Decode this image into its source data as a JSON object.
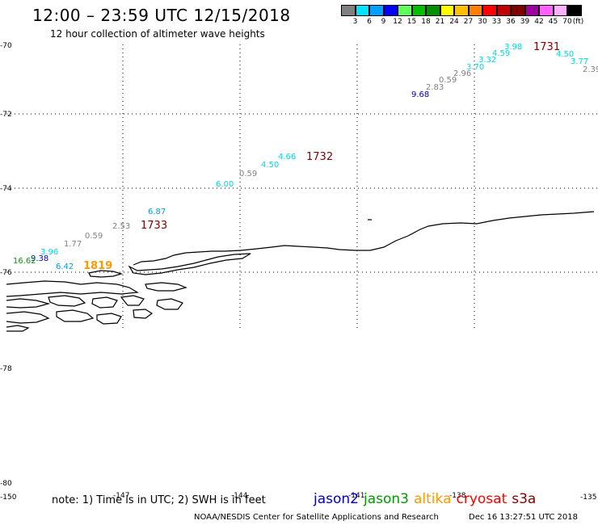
{
  "header": {
    "title": "12:00 – 23:59 UTC 12/15/2018",
    "subtitle": "12 hour collection of altimeter wave heights"
  },
  "colorbar": {
    "colors": [
      "#808080",
      "#00e5ff",
      "#00a0ff",
      "#0000ff",
      "#5cff5c",
      "#00c000",
      "#009000",
      "#ffff00",
      "#ffc000",
      "#ff8000",
      "#ff0000",
      "#c00000",
      "#800000",
      "#a000a0",
      "#ff60ff",
      "#ffb0ff",
      "#000000"
    ],
    "labels": [
      "3",
      "6",
      "9",
      "12",
      "15",
      "18",
      "21",
      "24",
      "27",
      "30",
      "33",
      "36",
      "39",
      "42",
      "45",
      "70",
      "(ft)"
    ]
  },
  "axes": {
    "lat_labels": [
      "-70",
      "-72",
      "-74",
      "-76",
      "-78",
      "-80"
    ],
    "lon_labels": [
      "-150",
      "-147",
      "-144",
      "-141",
      "-138",
      "-135"
    ]
  },
  "measurements": [
    {
      "text": "3.98",
      "color": "#00d8e8"
    },
    {
      "text": "4.59",
      "color": "#00d8e8"
    },
    {
      "text": "3.32",
      "color": "#00d8e8"
    },
    {
      "text": "3.70",
      "color": "#00d8e8"
    },
    {
      "text": "2.96",
      "color": "#808080"
    },
    {
      "text": "0.59",
      "color": "#808080"
    },
    {
      "text": "2.83",
      "color": "#808080"
    },
    {
      "text": "9.68",
      "color": "#0000c0"
    },
    {
      "text": "1731",
      "color": "#800000"
    },
    {
      "text": "4.50",
      "color": "#00d8e8"
    },
    {
      "text": "3.77",
      "color": "#00d8e8"
    },
    {
      "text": "2.39",
      "color": "#808080"
    },
    {
      "text": "4.66",
      "color": "#00d8e8"
    },
    {
      "text": "4.50",
      "color": "#00d8e8"
    },
    {
      "text": "0.59",
      "color": "#808080"
    },
    {
      "text": "6.00",
      "color": "#00d8e8"
    },
    {
      "text": "1732",
      "color": "#800000"
    },
    {
      "text": "6.87",
      "color": "#00a0e0"
    },
    {
      "text": "2.53",
      "color": "#808080"
    },
    {
      "text": "1733",
      "color": "#800000"
    },
    {
      "text": "0.59",
      "color": "#808080"
    },
    {
      "text": "1.77",
      "color": "#808080"
    },
    {
      "text": "3.96",
      "color": "#00d8e8"
    },
    {
      "text": "9.38",
      "color": "#0000c0"
    },
    {
      "text": "16.62",
      "color": "#00a000"
    },
    {
      "text": "6.42",
      "color": "#00a0e0"
    },
    {
      "text": "1819",
      "color": "#ff9900"
    }
  ],
  "footer": {
    "note": "note: 1) Time is in UTC; 2) SWH is in feet",
    "satellites": [
      {
        "name": "jason2",
        "color": "#0000cc"
      },
      {
        "name": "jason3",
        "color": "#009900"
      },
      {
        "name": "altika",
        "color": "#ff9900"
      },
      {
        "name": "cryosat",
        "color": "#ff0000"
      },
      {
        "name": "s3a",
        "color": "#880000"
      }
    ],
    "credit": "NOAA/NESDIS Center for Satellite Applications and Research",
    "timestamp": "Dec 16 13:27:51 UTC 2018"
  }
}
